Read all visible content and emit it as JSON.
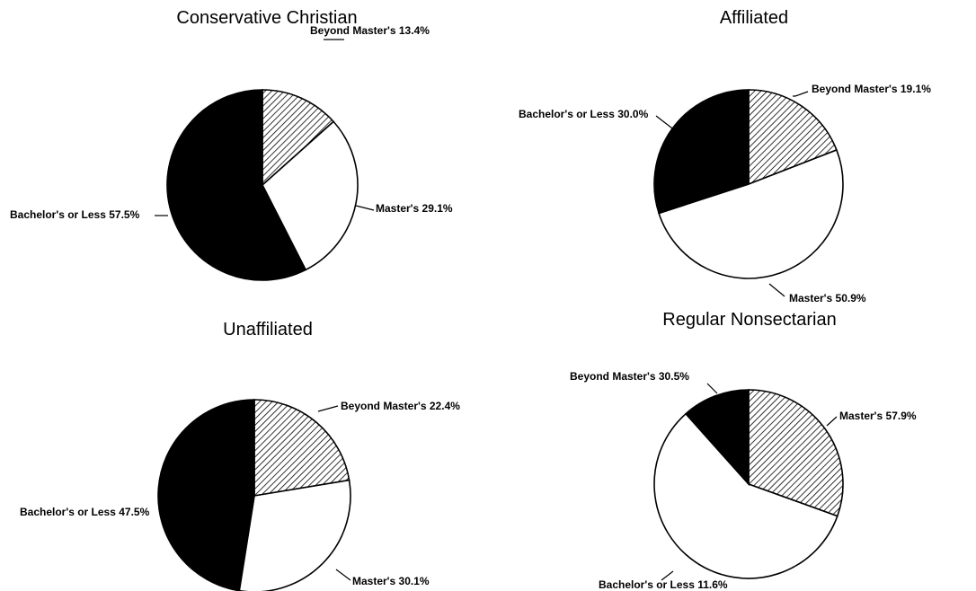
{
  "chart_data": [
    {
      "type": "pie",
      "title": "Conservative Christian",
      "slices": [
        {
          "label": "Beyond Master's",
          "value": 13.4,
          "pattern": "hatch",
          "label_text": "Beyond Master's 13.4%"
        },
        {
          "label": "Master's",
          "value": 29.1,
          "pattern": "white",
          "label_text": "Master's 29.1%"
        },
        {
          "label": "Bachelor's or Less",
          "value": 57.5,
          "pattern": "black",
          "label_text": "Bachelor's or Less 57.5%"
        }
      ]
    },
    {
      "type": "pie",
      "title": "Affiliated",
      "slices": [
        {
          "label": "Beyond Master's",
          "value": 19.1,
          "pattern": "hatch",
          "label_text": "Beyond Master's 19.1%"
        },
        {
          "label": "Master's",
          "value": 50.9,
          "pattern": "white",
          "label_text": "Master's 50.9%"
        },
        {
          "label": "Bachelor's or Less",
          "value": 30.0,
          "pattern": "black",
          "label_text": "Bachelor's or Less 30.0%"
        }
      ]
    },
    {
      "type": "pie",
      "title": "Unaffiliated",
      "slices": [
        {
          "label": "Beyond Master's",
          "value": 22.4,
          "pattern": "hatch",
          "label_text": "Beyond Master's 22.4%"
        },
        {
          "label": "Master's",
          "value": 30.1,
          "pattern": "white",
          "label_text": "Master's 30.1%"
        },
        {
          "label": "Bachelor's or Less",
          "value": 47.5,
          "pattern": "black",
          "label_text": "Bachelor's or Less 47.5%"
        }
      ]
    },
    {
      "type": "pie",
      "title": "Regular Nonsectarian",
      "slices": [
        {
          "label": "Beyond Master's",
          "value": 30.5,
          "pattern": "hatch",
          "label_text": "Beyond Master's 30.5%"
        },
        {
          "label": "Master's",
          "value": 57.9,
          "pattern": "white",
          "label_text": "Master's 57.9%"
        },
        {
          "label": "Bachelor's or Less",
          "value": 11.6,
          "pattern": "black",
          "label_text": "Bachelor's or Less 11.6%"
        }
      ]
    }
  ]
}
